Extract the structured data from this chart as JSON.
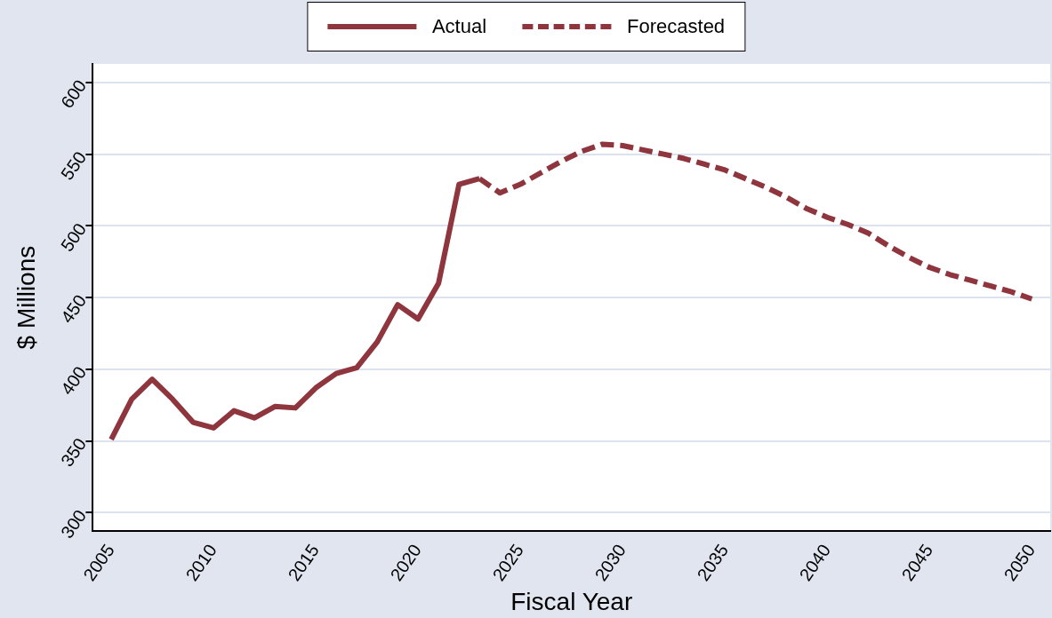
{
  "chart_data": {
    "type": "line",
    "xlabel": "Fiscal Year",
    "ylabel": "$ Millions",
    "xlim": [
      2004.1,
      2050.9
    ],
    "xticks": [
      2005,
      2010,
      2015,
      2020,
      2025,
      2030,
      2035,
      2040,
      2045,
      2050
    ],
    "ylim": [
      287,
      613
    ],
    "yticks": [
      300,
      350,
      400,
      450,
      500,
      550,
      600
    ],
    "grid": "y",
    "legend": "top",
    "series": [
      {
        "name": "Actual",
        "color": "#8e353d",
        "line_style": "solid",
        "x": [
          2005,
          2006,
          2007,
          2008,
          2009,
          2010,
          2011,
          2012,
          2013,
          2014,
          2015,
          2016,
          2017,
          2018,
          2019,
          2020,
          2021,
          2022,
          2023
        ],
        "values": [
          351,
          379,
          393,
          379,
          363,
          359,
          371,
          366,
          374,
          373,
          387,
          397,
          401,
          419,
          445,
          435,
          460,
          529,
          533
        ]
      },
      {
        "name": "Forecasted",
        "color": "#8e353d",
        "line_style": "dashed",
        "x": [
          2023,
          2024,
          2025,
          2026,
          2027,
          2028,
          2029,
          2030,
          2031,
          2032,
          2033,
          2034,
          2035,
          2036,
          2037,
          2038,
          2039,
          2040,
          2041,
          2042,
          2043,
          2044,
          2045,
          2046,
          2047,
          2048,
          2049,
          2050
        ],
        "values": [
          533,
          523,
          529,
          537,
          545,
          552,
          557,
          556,
          553,
          550,
          547,
          543,
          539,
          533,
          527,
          520,
          512,
          506,
          501,
          495,
          486,
          478,
          471,
          466,
          462,
          458,
          454,
          449
        ]
      }
    ]
  }
}
